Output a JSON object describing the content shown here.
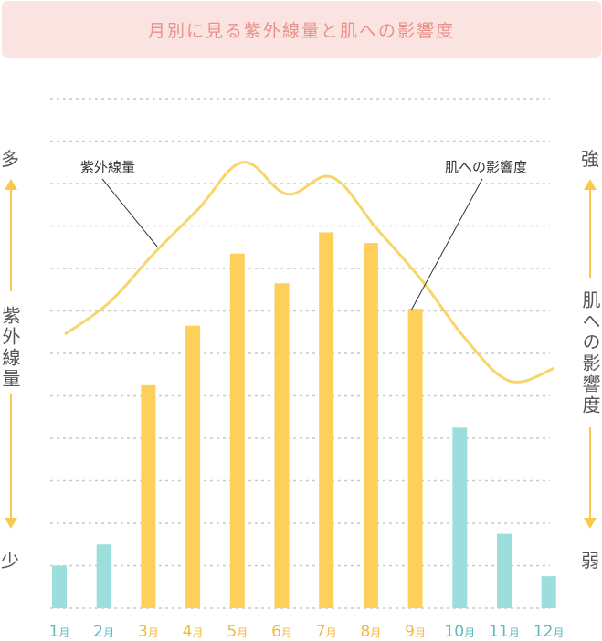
{
  "title": "月別に見る紫外線量と肌への影響度",
  "left_axis": {
    "top": "多",
    "bottom": "少",
    "label": "紫外線量"
  },
  "right_axis": {
    "top": "強",
    "bottom": "弱",
    "label": "肌への影響度"
  },
  "colors": {
    "yellow": "#fecf5a",
    "teal": "#9bdedc",
    "line": "#f7d56a",
    "grid": "#c9c9c9",
    "title_bg": "#fbe3e1",
    "title_text": "#ea9189",
    "month_yellow": "#f3b93c",
    "month_teal": "#5bbcc0"
  },
  "chart_data": {
    "type": "bar",
    "categories": [
      "1月",
      "2月",
      "3月",
      "4月",
      "5月",
      "6月",
      "7月",
      "8月",
      "9月",
      "10月",
      "11月",
      "12月"
    ],
    "series": [
      {
        "name": "肌への影響度",
        "values": [
          1.0,
          1.5,
          5.25,
          6.65,
          8.35,
          7.65,
          8.85,
          8.6,
          7.05,
          4.25,
          1.75,
          0.75
        ]
      },
      {
        "name": "紫外線量",
        "values": [
          6.45,
          7.2,
          8.35,
          9.4,
          10.5,
          9.75,
          10.15,
          8.95,
          7.75,
          6.35,
          5.35,
          5.65
        ]
      }
    ],
    "bar_colors": [
      "teal",
      "teal",
      "yellow",
      "yellow",
      "yellow",
      "yellow",
      "yellow",
      "yellow",
      "yellow",
      "teal",
      "teal",
      "teal"
    ],
    "annotations": [
      "紫外線量",
      "肌への影響度"
    ],
    "ylim": [
      0,
      12
    ],
    "grid": true
  }
}
